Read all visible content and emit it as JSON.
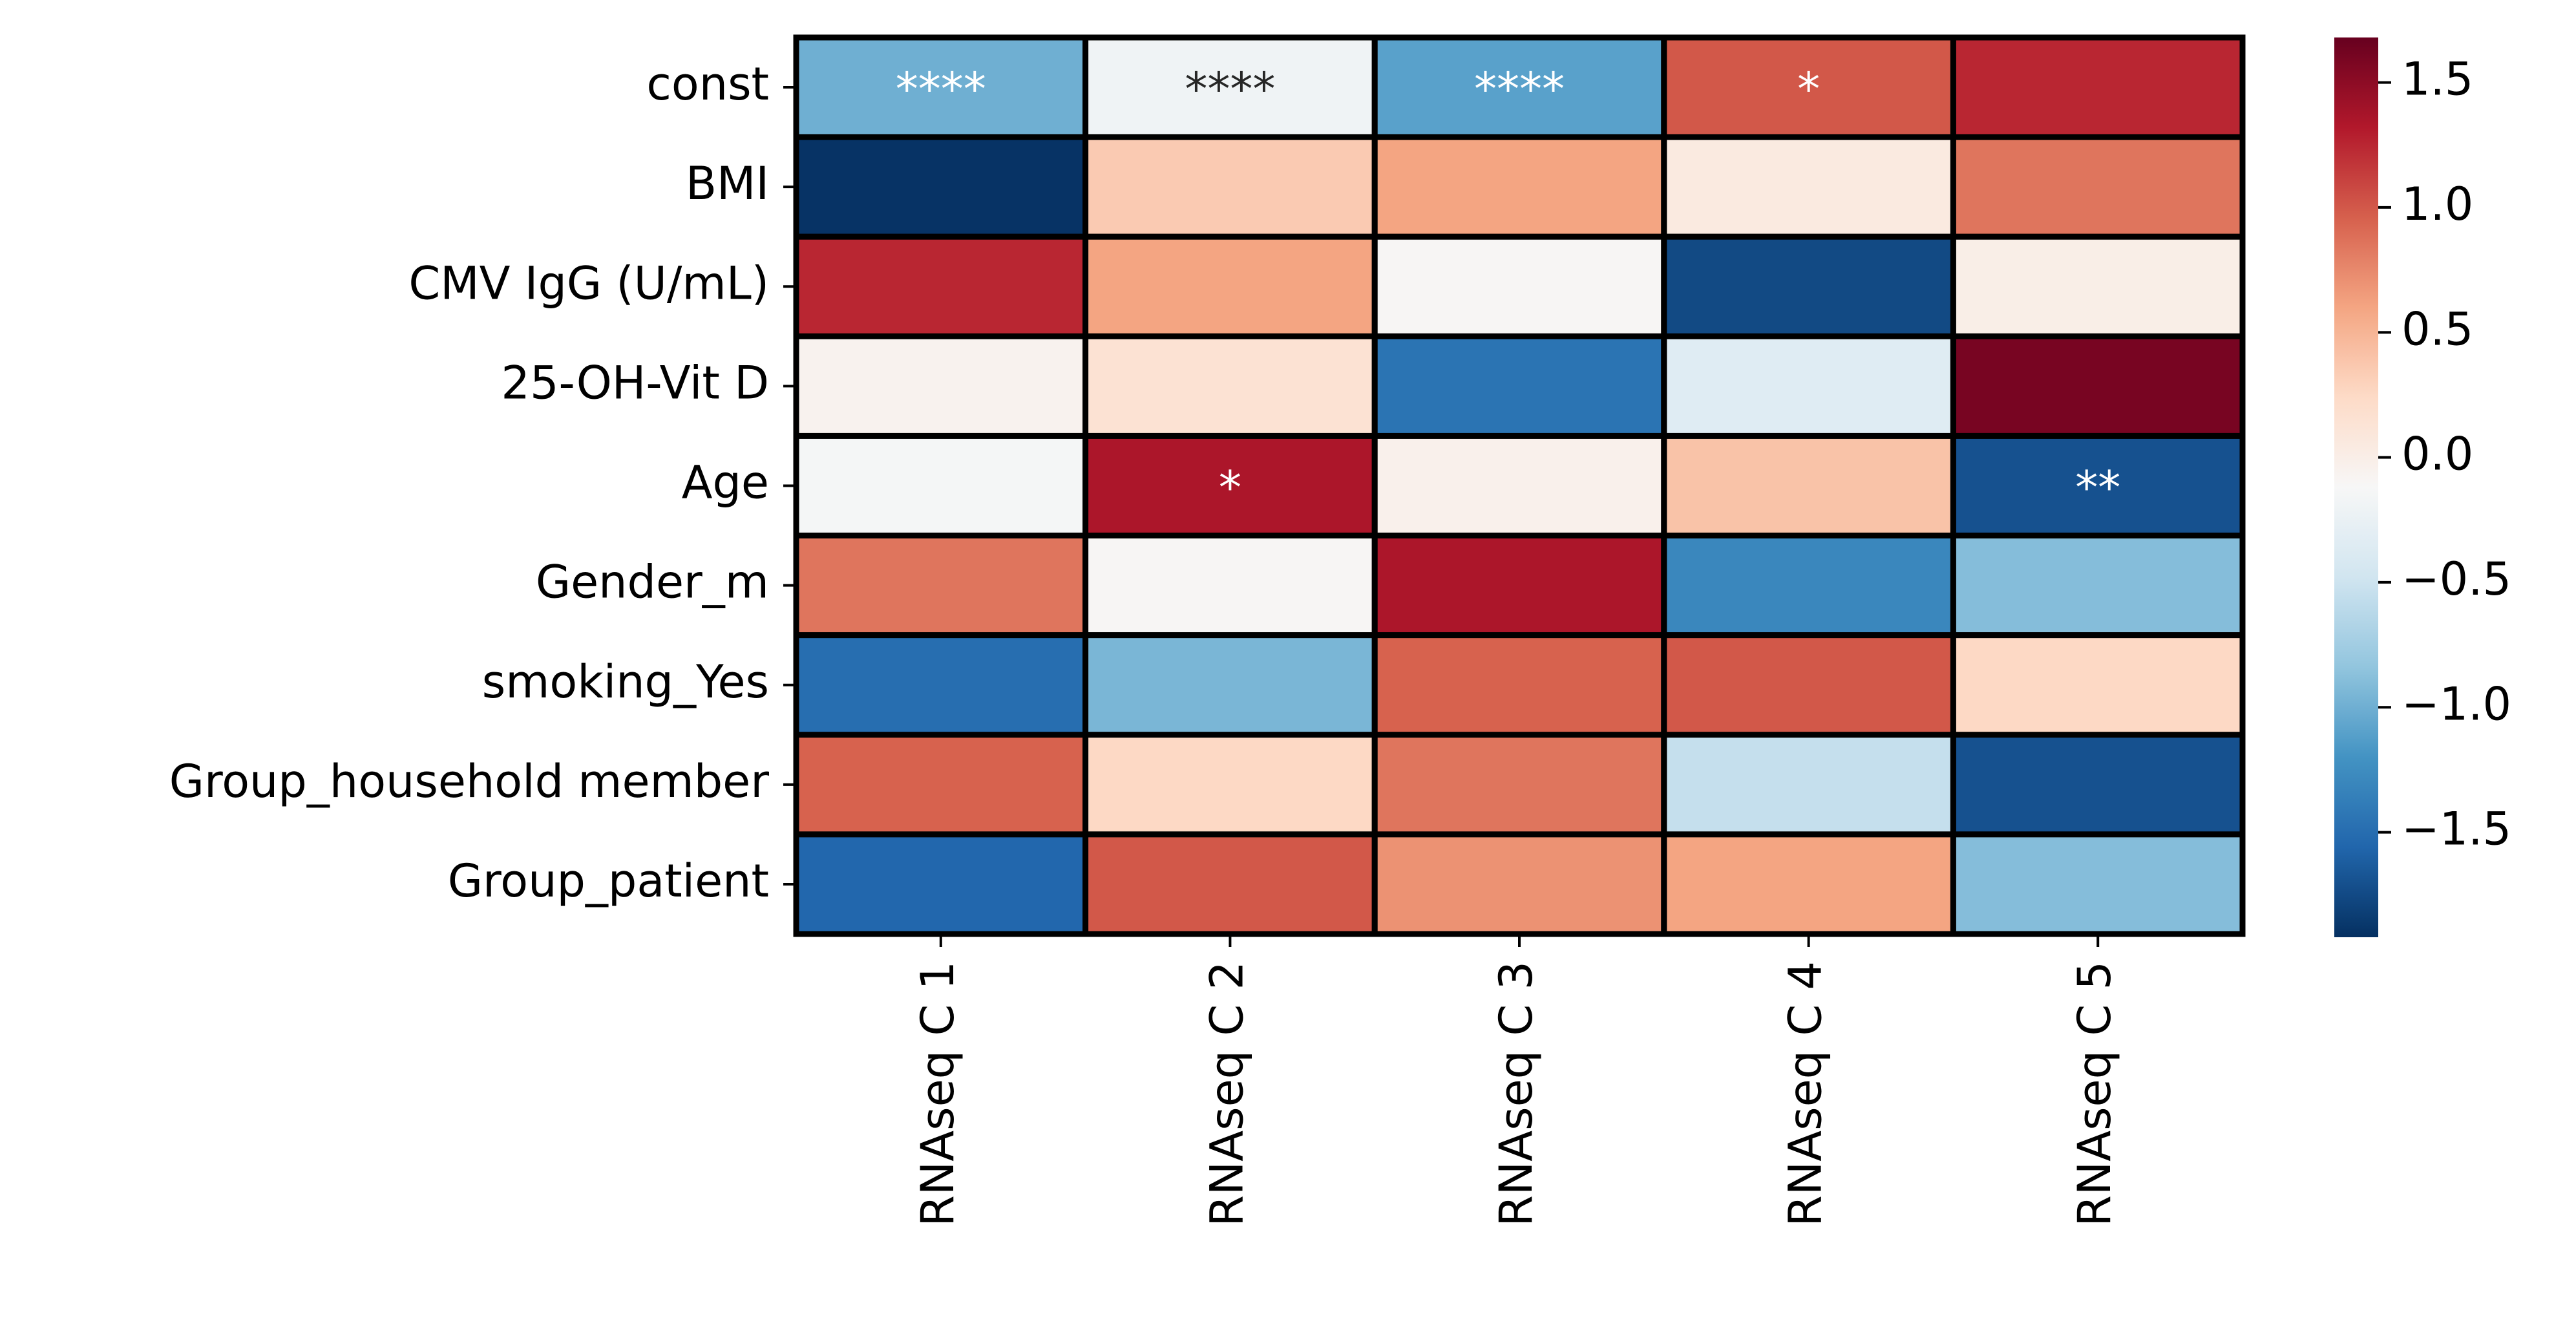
{
  "chart_data": {
    "type": "heatmap",
    "rows": [
      "const",
      "BMI",
      "CMV IgG (U/mL)",
      "25-OH-Vit D",
      "Age",
      "Gender_m",
      "smoking_Yes",
      "Group_household member",
      "Group_patient"
    ],
    "columns": [
      "RNAseq C 1",
      "RNAseq C 2",
      "RNAseq C 3",
      "RNAseq C 4",
      "RNAseq C 5"
    ],
    "values": [
      [
        -1.0,
        -0.2,
        -1.1,
        1.0,
        1.25
      ],
      [
        -1.9,
        0.35,
        0.6,
        0.05,
        0.85
      ],
      [
        1.25,
        0.6,
        -0.1,
        -1.75,
        0.0
      ],
      [
        -0.05,
        0.15,
        -1.45,
        -0.35,
        1.6
      ],
      [
        -0.15,
        1.35,
        -0.03,
        0.4,
        -1.7
      ],
      [
        0.85,
        -0.1,
        1.35,
        -1.3,
        -0.9
      ],
      [
        -1.5,
        -0.95,
        0.95,
        1.0,
        0.25
      ],
      [
        0.95,
        0.25,
        0.85,
        -0.55,
        -1.7
      ],
      [
        -1.55,
        1.0,
        0.7,
        0.6,
        -0.9
      ]
    ],
    "annotations": [
      [
        "****",
        "****",
        "****",
        "*",
        ""
      ],
      [
        "",
        "",
        "",
        "",
        ""
      ],
      [
        "",
        "",
        "",
        "",
        ""
      ],
      [
        "",
        "",
        "",
        "",
        ""
      ],
      [
        "",
        "*",
        "",
        "",
        "**"
      ],
      [
        "",
        "",
        "",
        "",
        ""
      ],
      [
        "",
        "",
        "",
        "",
        ""
      ],
      [
        "",
        "",
        "",
        "",
        ""
      ],
      [
        "",
        "",
        "",
        "",
        ""
      ]
    ],
    "colormap": "RdBu_r",
    "vmin": -1.92,
    "vmax": 1.68,
    "colorbar": {
      "ticks": [
        1.5,
        1.0,
        0.5,
        0.0,
        -0.5,
        -1.0,
        -1.5
      ],
      "tick_labels": [
        "1.5",
        "1.0",
        "0.5",
        "0.0",
        "−0.5",
        "−1.0",
        "−1.5"
      ]
    },
    "colors": [
      "#053061",
      "#2166ac",
      "#4393c3",
      "#92c5de",
      "#d1e5f0",
      "#f7f7f7",
      "#fddbc7",
      "#f4a582",
      "#d6604d",
      "#b2182b",
      "#67001f"
    ],
    "cell_border_color": "#000000",
    "title": "",
    "xlabel": "",
    "ylabel": ""
  }
}
